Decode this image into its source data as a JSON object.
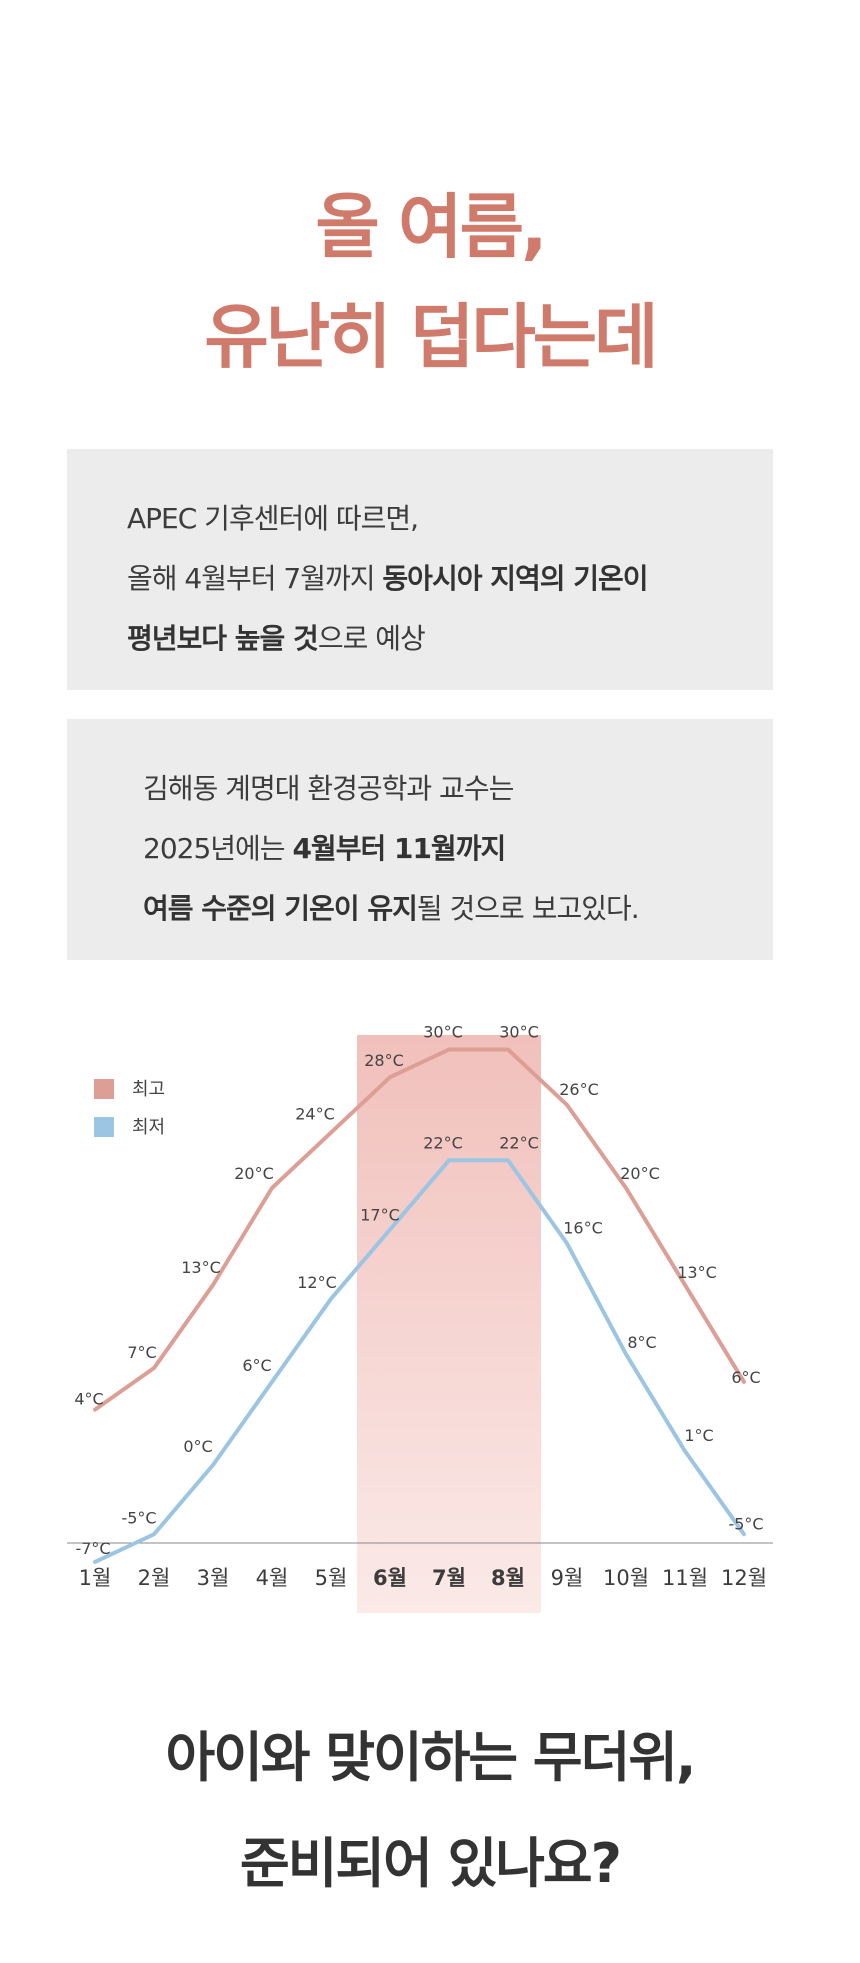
{
  "headline": {
    "line1": "올 여름,",
    "line2": "유난히 덥다는데"
  },
  "box1": {
    "line1": "APEC 기후센터에 따르면,",
    "line2_normal": "올해 4월부터 7월까지 ",
    "line2_bold": "동아시아 지역의 기온이",
    "line3_bold": "평년보다 높을 것",
    "line3_normal": "으로 예상"
  },
  "box2": {
    "line1": "김해동 계명대 환경공학과 교수는",
    "line2_normal": "2025년에는 ",
    "line2_bold": "4월부터 11월까지",
    "line3_bold": "여름 수준의 기온이 유지",
    "line3_normal": "될 것으로 보고있다."
  },
  "chart_data": {
    "type": "line",
    "categories": [
      "1월",
      "2월",
      "3월",
      "4월",
      "5월",
      "6월",
      "7월",
      "8월",
      "9월",
      "10월",
      "11월",
      "12월"
    ],
    "highlighted_categories": [
      "6월",
      "7월",
      "8월"
    ],
    "series": [
      {
        "name": "최고",
        "color": "#dd9e96",
        "values": [
          4,
          7,
          13,
          20,
          24,
          28,
          30,
          30,
          26,
          20,
          13,
          6
        ],
        "labels": [
          "4°C",
          "7°C",
          "13°C",
          "20°C",
          "24°C",
          "28°C",
          "30°C",
          "30°C",
          "26°C",
          "20°C",
          "13°C",
          "6°C"
        ]
      },
      {
        "name": "최저",
        "color": "#9cc5e3",
        "values": [
          -7,
          -5,
          0,
          6,
          12,
          17,
          22,
          22,
          16,
          8,
          1,
          -5
        ],
        "labels": [
          "-7°C",
          "-5°C",
          "0°C",
          "6°C",
          "12°C",
          "17°C",
          "22°C",
          "22°C",
          "16°C",
          "8°C",
          "1°C",
          "-5°C"
        ]
      }
    ],
    "legend_position": "top-left",
    "grid": false,
    "highlight_color": "#f1c0bb"
  },
  "closing": {
    "line1": "아이와 맞이하는 무더위,",
    "line2": "준비되어 있나요?"
  }
}
